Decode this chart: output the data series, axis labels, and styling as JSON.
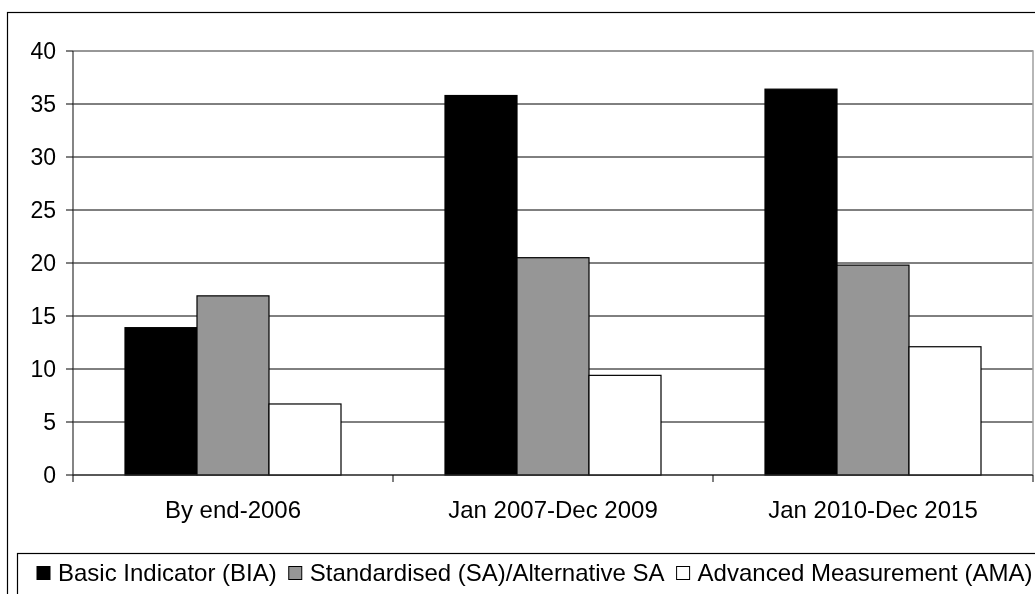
{
  "chart_data": {
    "type": "bar",
    "categories": [
      "By end-2006",
      "Jan 2007-Dec 2009",
      "Jan 2010-Dec 2015"
    ],
    "series": [
      {
        "name": "Basic Indicator (BIA)",
        "color": "#000000",
        "values": [
          13.9,
          35.8,
          36.4
        ]
      },
      {
        "name": "Standardised (SA)/Alternative SA",
        "color": "#969696",
        "values": [
          16.9,
          20.5,
          19.8
        ]
      },
      {
        "name": "Advanced Measurement (AMA)",
        "color": "#ffffff",
        "values": [
          6.7,
          9.4,
          12.1
        ]
      }
    ],
    "ylim": [
      0,
      40
    ],
    "yticks": [
      0,
      5,
      10,
      15,
      20,
      25,
      30,
      35,
      40
    ],
    "grid": "y",
    "legend": "bottom"
  }
}
